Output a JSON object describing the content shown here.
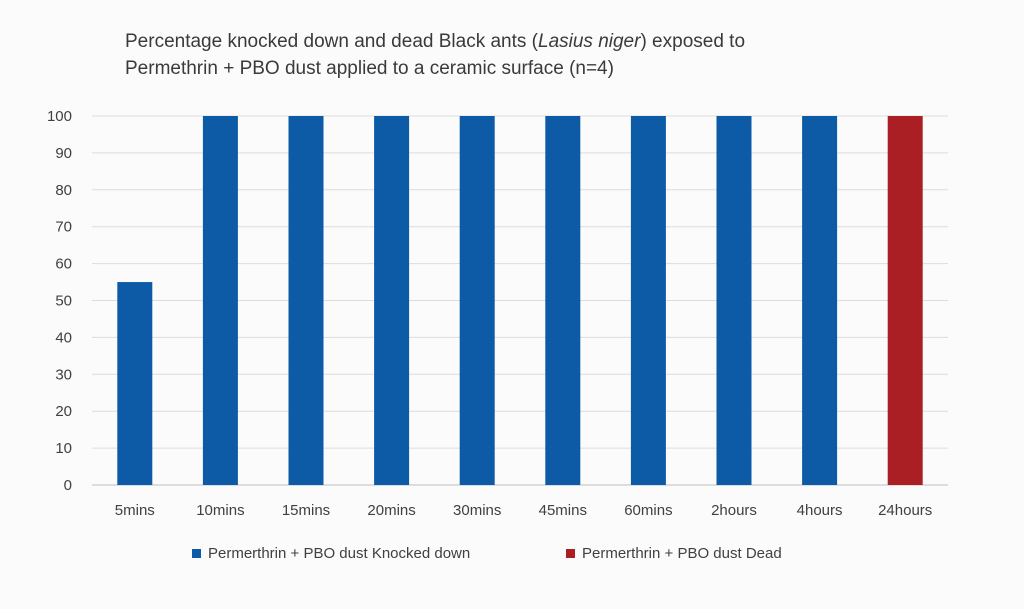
{
  "title": {
    "line1_prefix": "Percentage knocked down and dead Black ants (",
    "line1_italic": "Lasius niger",
    "line1_suffix": ") exposed to",
    "line2": "Permethrin + PBO dust applied to a ceramic surface (n=4)"
  },
  "chart_data": {
    "type": "bar",
    "title": "Percentage knocked down and dead Black ants (Lasius niger) exposed to Permethrin + PBO dust applied to a ceramic surface (n=4)",
    "categories": [
      "5mins",
      "10mins",
      "15mins",
      "20mins",
      "30mins",
      "45mins",
      "60mins",
      "2hours",
      "4hours",
      "24hours"
    ],
    "series": [
      {
        "name": "Permerthrin + PBO dust Knocked down",
        "color": "#0d5aa7",
        "values": [
          55,
          100,
          100,
          100,
          100,
          100,
          100,
          100,
          100,
          null
        ]
      },
      {
        "name": "Permerthrin + PBO dust Dead",
        "color": "#a91f24",
        "values": [
          null,
          null,
          null,
          null,
          null,
          null,
          null,
          null,
          null,
          100
        ]
      }
    ],
    "ylim": [
      0,
      100
    ],
    "yticks": [
      0,
      10,
      20,
      30,
      40,
      50,
      60,
      70,
      80,
      90,
      100
    ],
    "grid": true,
    "legend_position": "bottom",
    "xlabel": "",
    "ylabel": ""
  }
}
